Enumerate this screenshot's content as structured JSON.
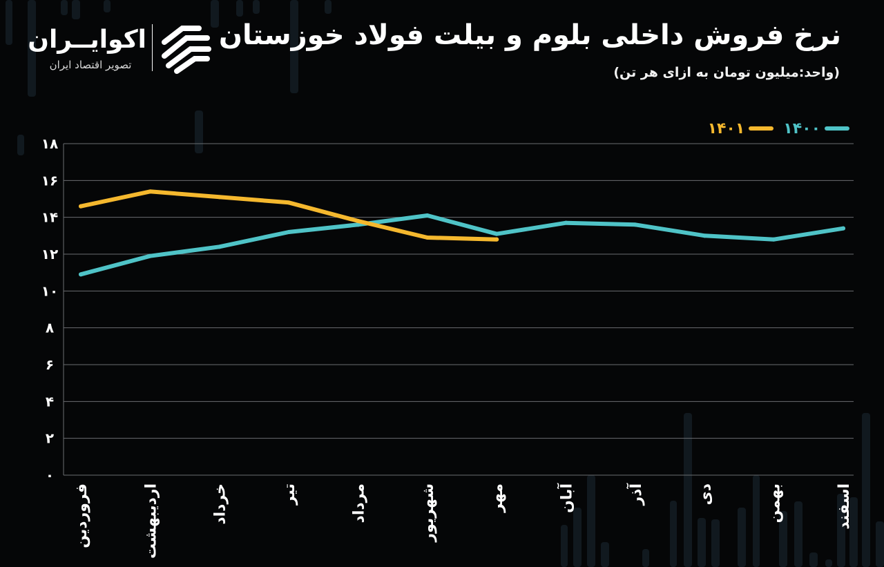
{
  "header": {
    "title": "نرخ فروش داخلی بلوم و بیلت فولاد خوزستان",
    "subtitle": "(واحد:میلیون تومان به ازای هر تن)"
  },
  "brand": {
    "name": "اکوایــران",
    "tagline": "تصویر اقتصاد ایران",
    "logo_icon": "ecoiran-logo-icon"
  },
  "colors": {
    "background": "#050607",
    "grid": "#6b6e72",
    "series_1400": "#4fc3c7",
    "series_1401": "#f5b82e",
    "bg_bars": "#152028"
  },
  "chart_data": {
    "type": "line",
    "title": "نرخ فروش داخلی بلوم و بیلت فولاد خوزستان",
    "xlabel": "",
    "ylabel": "",
    "categories": [
      "فروردین",
      "اردیبهشت",
      "خرداد",
      "تیر",
      "مرداد",
      "شهریور",
      "مهر",
      "آبان",
      "آذر",
      "دی",
      "بهمن",
      "اسفند"
    ],
    "y_ticks": [
      "۰",
      "۲",
      "۴",
      "۶",
      "۸",
      "۱۰",
      "۱۲",
      "۱۴",
      "۱۶",
      "۱۸"
    ],
    "ylim": [
      0,
      18
    ],
    "grid": true,
    "legend_position": "top-right",
    "series": [
      {
        "name": "۱۴۰۰",
        "color": "#4fc3c7",
        "values": [
          10.9,
          11.9,
          12.4,
          13.2,
          13.6,
          14.1,
          13.1,
          13.7,
          13.6,
          13.0,
          12.8,
          13.4
        ]
      },
      {
        "name": "۱۴۰۱",
        "color": "#f5b82e",
        "values": [
          14.6,
          15.4,
          15.1,
          14.8,
          13.8,
          12.9,
          12.8,
          null,
          null,
          null,
          null,
          null
        ]
      }
    ]
  }
}
